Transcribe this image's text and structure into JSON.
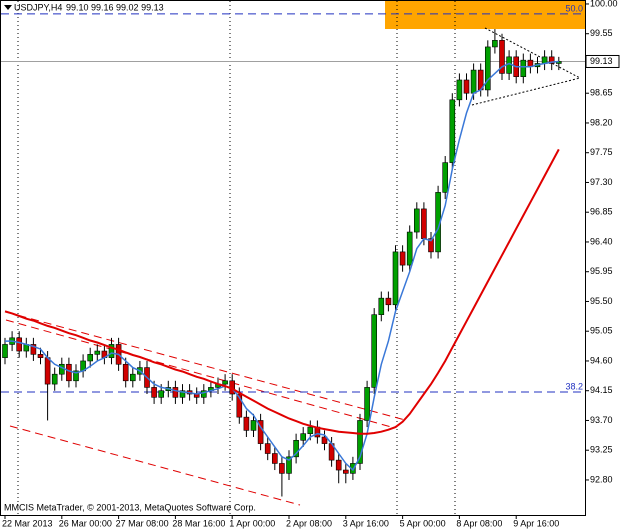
{
  "chart_data": {
    "type": "candlestick",
    "symbol": "USDJPY,H4",
    "ohlc_text": "99.10 99.16 99.02 99.13",
    "copyright": "MMCIS MetaTrader, © 2001-2013, MetaQuotes Software Corp.",
    "categories": [
      "22 Mar 2013",
      null,
      null,
      null,
      null,
      null,
      null,
      null,
      "26 Mar 00:00",
      null,
      null,
      null,
      null,
      null,
      null,
      null,
      "27 Mar 08:00",
      null,
      null,
      null,
      null,
      null,
      null,
      null,
      "28 Mar 16:00",
      null,
      null,
      null,
      null,
      null,
      null,
      null,
      "1 Apr 00:00",
      null,
      null,
      null,
      null,
      null,
      null,
      null,
      "2 Apr 08:00",
      null,
      null,
      null,
      null,
      null,
      null,
      null,
      "3 Apr 16:00",
      null,
      null,
      null,
      null,
      null,
      null,
      null,
      "5 Apr 00:00",
      null,
      null,
      null,
      null,
      null,
      null,
      null,
      "8 Apr 08:00",
      null,
      null,
      null,
      null,
      null,
      null,
      null,
      "9 Apr 16:00",
      null,
      null,
      null,
      null,
      null,
      null
    ],
    "open": [
      94.65,
      94.85,
      94.95,
      94.75,
      94.85,
      94.7,
      94.65,
      94.25,
      94.4,
      94.55,
      94.3,
      94.45,
      94.6,
      94.7,
      94.75,
      94.65,
      94.85,
      94.55,
      94.3,
      94.4,
      94.5,
      94.2,
      94.05,
      94.15,
      94.2,
      94.05,
      94.15,
      94.1,
      94.05,
      94.15,
      94.2,
      94.25,
      94.3,
      94.1,
      93.75,
      93.55,
      93.7,
      93.35,
      93.2,
      93.05,
      92.9,
      93.15,
      93.4,
      93.5,
      93.6,
      93.45,
      93.35,
      93.1,
      92.95,
      92.9,
      93.05,
      93.7,
      94.2,
      95.3,
      95.55,
      95.45,
      96.25,
      96.05,
      96.55,
      96.9,
      96.45,
      96.25,
      97.15,
      97.6,
      98.55,
      98.85,
      98.65,
      99.0,
      98.7,
      99.35,
      99.45,
      98.95,
      99.2,
      98.9,
      99.15,
      99.05,
      99.1,
      99.2,
      99.1
    ],
    "high": [
      94.95,
      95.05,
      95.05,
      94.95,
      94.95,
      94.8,
      94.75,
      94.5,
      94.65,
      94.65,
      94.55,
      94.7,
      94.8,
      94.85,
      94.85,
      94.95,
      94.95,
      94.65,
      94.5,
      94.6,
      94.6,
      94.3,
      94.25,
      94.3,
      94.3,
      94.25,
      94.25,
      94.2,
      94.25,
      94.3,
      94.35,
      94.4,
      94.4,
      94.2,
      93.85,
      93.8,
      93.8,
      93.45,
      93.3,
      93.15,
      93.25,
      93.5,
      93.6,
      93.7,
      93.7,
      93.55,
      93.45,
      93.2,
      93.05,
      93.15,
      93.8,
      94.3,
      95.4,
      95.65,
      95.65,
      96.35,
      96.35,
      96.65,
      97.0,
      97.0,
      96.55,
      97.25,
      97.7,
      98.65,
      98.95,
      98.95,
      99.1,
      99.1,
      99.45,
      99.62,
      99.55,
      99.3,
      99.3,
      99.25,
      99.25,
      99.2,
      99.3,
      99.3,
      99.2
    ],
    "low": [
      94.55,
      94.75,
      94.65,
      94.65,
      94.6,
      94.55,
      93.7,
      94.15,
      94.3,
      94.2,
      94.2,
      94.35,
      94.5,
      94.6,
      94.55,
      94.55,
      94.45,
      94.2,
      94.2,
      94.3,
      94.1,
      93.95,
      93.95,
      94.05,
      93.95,
      93.95,
      94.0,
      93.95,
      93.95,
      94.05,
      94.1,
      94.15,
      94.0,
      93.65,
      93.45,
      93.45,
      93.25,
      93.1,
      92.95,
      92.55,
      92.8,
      93.05,
      93.3,
      93.4,
      93.35,
      93.25,
      93.0,
      92.75,
      92.75,
      92.8,
      92.95,
      93.6,
      94.1,
      95.2,
      95.35,
      95.35,
      95.95,
      95.95,
      96.45,
      96.35,
      96.15,
      96.15,
      97.05,
      97.5,
      98.45,
      98.55,
      98.55,
      98.6,
      98.6,
      99.25,
      98.85,
      98.85,
      98.8,
      98.8,
      98.95,
      98.95,
      99.0,
      99.0,
      99.0
    ],
    "close": [
      94.85,
      94.95,
      94.75,
      94.85,
      94.7,
      94.65,
      94.25,
      94.4,
      94.55,
      94.3,
      94.45,
      94.6,
      94.7,
      94.75,
      94.65,
      94.85,
      94.55,
      94.3,
      94.4,
      94.5,
      94.2,
      94.05,
      94.15,
      94.2,
      94.05,
      94.15,
      94.1,
      94.05,
      94.15,
      94.2,
      94.25,
      94.3,
      94.1,
      93.75,
      93.55,
      93.7,
      93.35,
      93.2,
      93.05,
      92.9,
      93.15,
      93.4,
      93.5,
      93.6,
      93.45,
      93.35,
      93.1,
      92.95,
      92.9,
      93.05,
      93.7,
      94.2,
      95.3,
      95.55,
      95.45,
      96.25,
      96.05,
      96.55,
      96.9,
      96.45,
      96.25,
      97.15,
      97.6,
      98.55,
      98.85,
      98.65,
      99.0,
      98.7,
      99.35,
      99.45,
      98.95,
      99.2,
      98.9,
      99.15,
      99.05,
      99.1,
      99.2,
      99.1,
      99.13
    ],
    "up_color": "#00a000",
    "down_color": "#d00000",
    "series": [
      {
        "color": "#3a78d8",
        "values": [
          94.9,
          94.9,
          94.88,
          94.85,
          94.82,
          94.78,
          94.65,
          94.55,
          94.5,
          94.45,
          94.42,
          94.45,
          94.52,
          94.6,
          94.65,
          94.72,
          94.7,
          94.6,
          94.5,
          94.45,
          94.35,
          94.25,
          94.2,
          94.18,
          94.15,
          94.13,
          94.12,
          94.1,
          94.12,
          94.15,
          94.18,
          94.22,
          94.18,
          94.05,
          93.88,
          93.78,
          93.6,
          93.45,
          93.3,
          93.15,
          93.1,
          93.2,
          93.32,
          93.45,
          93.5,
          93.48,
          93.35,
          93.2,
          93.05,
          92.95,
          93.15,
          93.5,
          94.05,
          94.55,
          94.9,
          95.35,
          95.65,
          95.95,
          96.3,
          96.45,
          96.42,
          96.6,
          96.95,
          97.5,
          97.95,
          98.35,
          98.65,
          98.7,
          98.85,
          98.95,
          99.05,
          99.1,
          99.05,
          99.05,
          99.05,
          99.08,
          99.1,
          99.12,
          99.13
        ]
      },
      {
        "color": "#e00000",
        "values": [
          95.35,
          95.32,
          95.28,
          95.24,
          95.21,
          95.17,
          95.13,
          95.1,
          95.06,
          95.02,
          94.99,
          94.95,
          94.91,
          94.88,
          94.84,
          94.8,
          94.77,
          94.73,
          94.69,
          94.66,
          94.62,
          94.58,
          94.55,
          94.51,
          94.47,
          94.44,
          94.4,
          94.36,
          94.33,
          94.29,
          94.25,
          94.22,
          94.18,
          94.12,
          94.06,
          94.0,
          93.94,
          93.88,
          93.83,
          93.78,
          93.73,
          93.69,
          93.65,
          93.62,
          93.59,
          93.57,
          93.55,
          93.53,
          93.52,
          93.51,
          93.5,
          93.5,
          93.51,
          93.53,
          93.56,
          93.6,
          93.68,
          93.8,
          93.95,
          94.1,
          94.25,
          94.42,
          94.6,
          94.8,
          95.0,
          95.2,
          95.4,
          95.6,
          95.8,
          96.0,
          96.2,
          96.4,
          96.6,
          96.8,
          97.0,
          97.2,
          97.4,
          97.6,
          97.8
        ]
      }
    ],
    "fib_levels": [
      {
        "label": "50.0",
        "value": 99.85
      },
      {
        "label": "38.2",
        "value": 94.13
      }
    ],
    "ylim": [
      92.27,
      100.06
    ],
    "yticks": [
      {
        "value": 100,
        "label": "100.00"
      },
      99.55,
      98.65,
      {
        "value": 98.2,
        "label": "98.20"
      },
      97.75,
      {
        "value": 97.3,
        "label": "97.30"
      },
      96.85,
      {
        "value": 96.4,
        "label": "96.40"
      },
      95.95,
      {
        "value": 95.5,
        "label": "95.50"
      },
      95.05,
      {
        "value": 94.6,
        "label": "94.60"
      },
      94.15,
      {
        "value": 93.7,
        "label": "93.70"
      },
      93.25,
      {
        "value": 92.8,
        "label": "92.80"
      }
    ]
  }
}
